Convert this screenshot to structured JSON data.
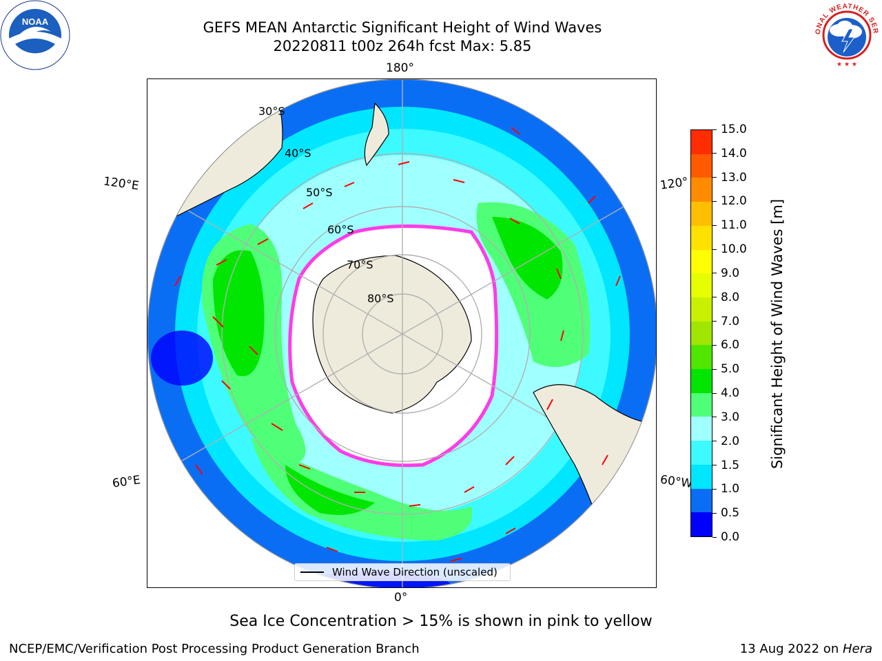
{
  "title": {
    "line1": "GEFS MEAN Antarctic Significant Height of Wind Waves",
    "line2": "20220811 t00z 264h fcst   Max: 5.85"
  },
  "logos": {
    "left": {
      "name": "noaa-logo",
      "text": "NOAA"
    },
    "right": {
      "name": "nws-logo",
      "text": "NATIONAL WEATHER SERVICE"
    }
  },
  "map": {
    "projection": "south-polar-stereographic",
    "longitude_labels": {
      "top": "180°",
      "bottom": "0°",
      "left_upper": "120°E",
      "left_lower": "60°E",
      "right_upper": "120°",
      "right_lower": "60°W"
    },
    "latitude_labels": [
      "30°S",
      "40°S",
      "50°S",
      "60°S",
      "70°S",
      "80°S"
    ],
    "legend_label": "Wind Wave Direction (unscaled)",
    "colors": {
      "land": "#efebdc",
      "sea_ice_edge": "#ff3ce6",
      "arrow": "#ff0000",
      "grid": "#b0b0b0"
    }
  },
  "colorbar": {
    "label": "Significant Height of Wind Waves [m]",
    "ticks": [
      "0.0",
      "0.5",
      "1.0",
      "1.5",
      "2.0",
      "3.0",
      "4.0",
      "5.0",
      "6.0",
      "7.0",
      "8.0",
      "9.0",
      "10.0",
      "11.0",
      "12.0",
      "13.0",
      "14.0",
      "15.0"
    ],
    "colors": [
      "#0000ff",
      "#0a6ef5",
      "#00e6ff",
      "#3cfaff",
      "#a0ffff",
      "#50ff78",
      "#00e600",
      "#50e600",
      "#a0e600",
      "#c8f000",
      "#e6ff00",
      "#ffff00",
      "#ffe100",
      "#ffbe00",
      "#ff8c00",
      "#ff5a00",
      "#ff2d00"
    ]
  },
  "footnote": "Sea Ice Concentration > 15% is shown in pink to yellow",
  "credits": {
    "left": "NCEP/EMC/Verification Post Processing Product Generation Branch",
    "right_date": "13 Aug 2022 on ",
    "right_host": "Hera"
  }
}
